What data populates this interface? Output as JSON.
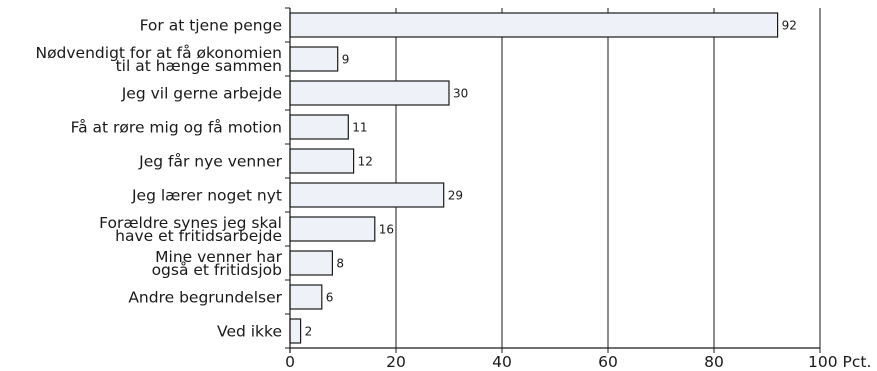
{
  "chart_data": {
    "type": "bar",
    "orientation": "horizontal",
    "categories": [
      [
        "For at tjene penge"
      ],
      [
        "Nødvendigt for at få økonomien",
        "til at hænge sammen"
      ],
      [
        "Jeg vil gerne arbejde"
      ],
      [
        "Få at røre mig og få motion"
      ],
      [
        "Jeg får nye venner"
      ],
      [
        "Jeg lærer noget nyt"
      ],
      [
        "Forældre synes jeg skal",
        "have et fritidsarbejde"
      ],
      [
        "Mine venner har",
        "også et fritidsjob"
      ],
      [
        "Andre begrundelser"
      ],
      [
        "Ved ikke"
      ]
    ],
    "values": [
      92,
      9,
      30,
      11,
      12,
      29,
      16,
      8,
      6,
      2
    ],
    "xlim": [
      0,
      100
    ],
    "xticks": [
      0,
      20,
      40,
      60,
      80,
      100
    ],
    "x_unit": "Pct.",
    "grid": "vertical",
    "bar_color": "#eef1f7",
    "title": "",
    "xlabel": "",
    "ylabel": ""
  }
}
